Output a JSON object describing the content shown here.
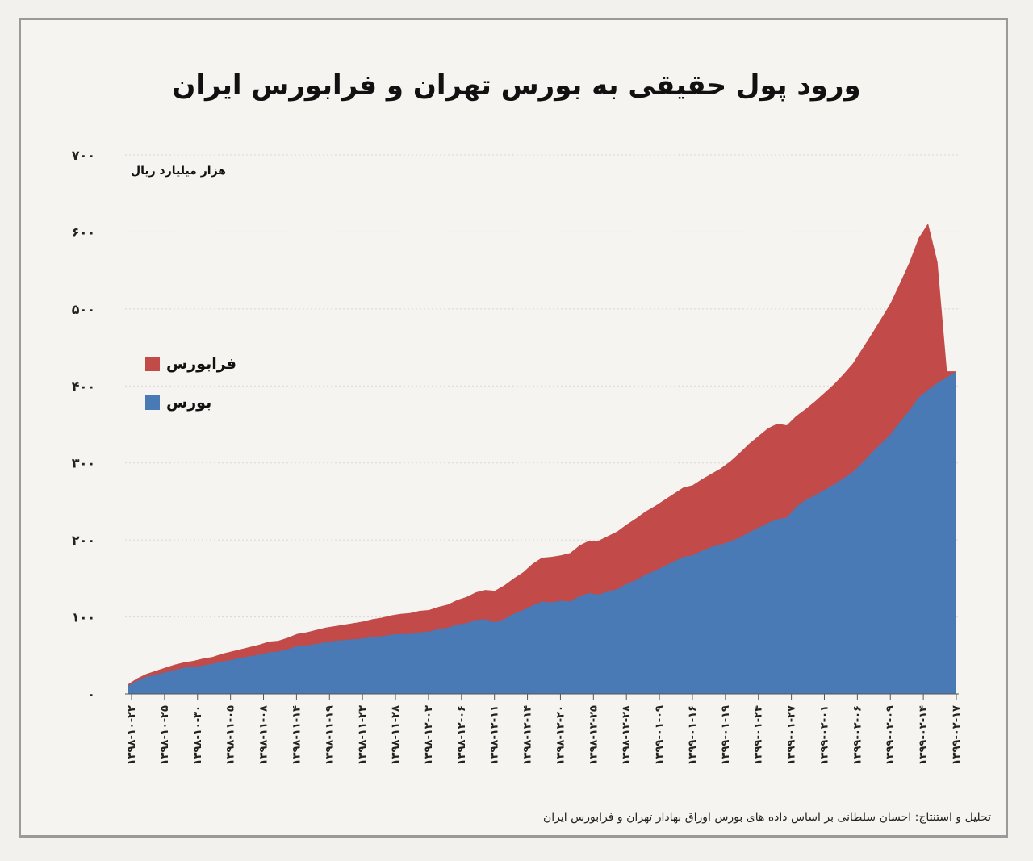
{
  "chart_data": {
    "type": "area",
    "stacked": true,
    "title": "ورود پول حقیقی به بورس تهران و فرابورس ایران",
    "ylabel": "هزار میلیارد ریال",
    "xlabel": "",
    "ylim": [
      0,
      700
    ],
    "yticks": [
      "۰",
      "۱۰۰",
      "۲۰۰",
      "۳۰۰",
      "۴۰۰",
      "۵۰۰",
      "۶۰۰",
      "۷۰۰"
    ],
    "ytick_values": [
      0,
      100,
      200,
      300,
      400,
      500,
      600,
      700
    ],
    "grid": true,
    "legend_position": "left",
    "x_labels": [
      "۱۳۹۸-۱۰-۲۲",
      "۱۳۹۸-۱۰-۲۵",
      "۱۳۹۸-۱۰-۳۰",
      "۱۳۹۸-۱۱-۰۵",
      "۱۳۹۸-۱۱-۰۸",
      "۱۳۹۸-۱۱-۱۴",
      "۱۳۹۸-۱۱-۱۹",
      "۱۳۹۸-۱۱-۲۳",
      "۱۳۹۸-۱۱-۲۸",
      "۱۳۹۸-۱۲-۰۳",
      "۱۳۹۸-۱۲-۰۶",
      "۱۳۹۸-۱۲-۱۱",
      "۱۳۹۸-۱۲-۱۴",
      "۱۳۹۸-۱۲-۲۰",
      "۱۳۹۸-۱۲-۲۵",
      "۱۳۹۸-۱۲-۲۸",
      "۱۳۹۹-۰۱-۰۹",
      "۱۳۹۹-۰۱-۱۶",
      "۱۳۹۹-۰۱-۱۹",
      "۱۳۹۹-۰۱-۲۴",
      "۱۳۹۹-۰۱-۲۷",
      "۱۳۹۹-۰۲-۰۱",
      "۱۳۹۹-۰۲-۰۶",
      "۱۳۹۹-۰۲-۰۹",
      "۱۳۹۹-۰۲-۱۴",
      "۱۳۹۹-۰۲-۱۷"
    ],
    "series": [
      {
        "name": "بورس",
        "color": "#4a7ab5",
        "values": [
          10,
          17,
          22,
          25,
          28,
          31,
          34,
          35,
          37,
          39,
          42,
          44,
          47,
          49,
          51,
          54,
          55,
          58,
          62,
          63,
          65,
          67,
          69,
          70,
          71,
          72,
          74,
          75,
          77,
          78,
          78,
          80,
          81,
          84,
          86,
          90,
          92,
          96,
          97,
          93,
          97,
          104,
          109,
          115,
          120,
          119,
          121,
          120,
          127,
          131,
          129,
          133,
          136,
          143,
          148,
          155,
          160,
          166,
          172,
          178,
          180,
          186,
          191,
          194,
          198,
          203,
          210,
          216,
          222,
          227,
          229,
          243,
          252,
          258,
          265,
          272,
          280,
          288,
          300,
          313,
          325,
          337,
          353,
          368,
          385,
          395,
          404,
          411,
          419
        ],
        "fill_values": [
          10,
          17,
          22,
          25,
          28,
          31,
          34,
          35,
          37,
          39,
          42,
          44,
          47,
          49,
          51,
          54,
          55,
          58,
          62,
          63,
          65,
          67,
          69,
          70,
          71,
          72,
          74,
          75,
          77,
          78,
          78,
          80,
          81,
          84,
          86,
          90,
          92,
          96,
          97,
          93,
          97,
          104,
          109,
          115,
          120,
          119,
          121,
          120,
          127,
          131,
          129,
          133,
          136,
          143,
          148,
          155,
          160,
          166,
          172,
          178,
          180,
          186,
          191,
          194,
          198,
          203,
          210,
          216,
          222,
          227,
          229,
          243,
          252,
          258,
          265,
          272,
          280,
          288,
          300,
          313,
          325,
          337,
          353,
          368,
          385,
          395,
          404,
          411,
          419
        ]
      },
      {
        "name": "فرابورس",
        "color": "#c24a48",
        "values": [
          2,
          3,
          4,
          5,
          6,
          7,
          7,
          8,
          9,
          9,
          10,
          11,
          11,
          12,
          13,
          14,
          14,
          15,
          16,
          17,
          18,
          19,
          19,
          20,
          21,
          22,
          23,
          24,
          25,
          26,
          27,
          28,
          28,
          29,
          30,
          32,
          34,
          36,
          38,
          41,
          44,
          46,
          49,
          54,
          57,
          59,
          59,
          63,
          66,
          68,
          70,
          72,
          75,
          77,
          80,
          82,
          84,
          86,
          88,
          90,
          91,
          93,
          95,
          99,
          104,
          110,
          115,
          119,
          123,
          124,
          120,
          118,
          118,
          122,
          126,
          130,
          135,
          141,
          148,
          154,
          162,
          170,
          180,
          192,
          207,
          216,
          157,
          8,
          0
        ],
        "fill_values": [
          2,
          3,
          4,
          5,
          6,
          7,
          7,
          8,
          9,
          9,
          10,
          11,
          11,
          12,
          13,
          14,
          14,
          15,
          16,
          17,
          18,
          19,
          19,
          20,
          21,
          22,
          23,
          24,
          25,
          26,
          27,
          28,
          28,
          29,
          30,
          32,
          34,
          36,
          38,
          41,
          44,
          46,
          49,
          54,
          57,
          59,
          59,
          63,
          66,
          68,
          70,
          72,
          75,
          77,
          80,
          82,
          84,
          86,
          88,
          90,
          91,
          93,
          95,
          99,
          104,
          110,
          115,
          119,
          123,
          124,
          120,
          118,
          118,
          122,
          126,
          130,
          135,
          141,
          148,
          154,
          162,
          170,
          180,
          192,
          207,
          216,
          157,
          8,
          0
        ]
      }
    ]
  },
  "legend": [
    {
      "label": "فرابورس",
      "color": "#c24a48"
    },
    {
      "label": "بورس",
      "color": "#4a7ab5"
    }
  ],
  "credit": "تحلیل و استنتاج: احسان سلطانی بر اساس داده های بورس اوراق بهادار تهران و فرابورس ایران"
}
